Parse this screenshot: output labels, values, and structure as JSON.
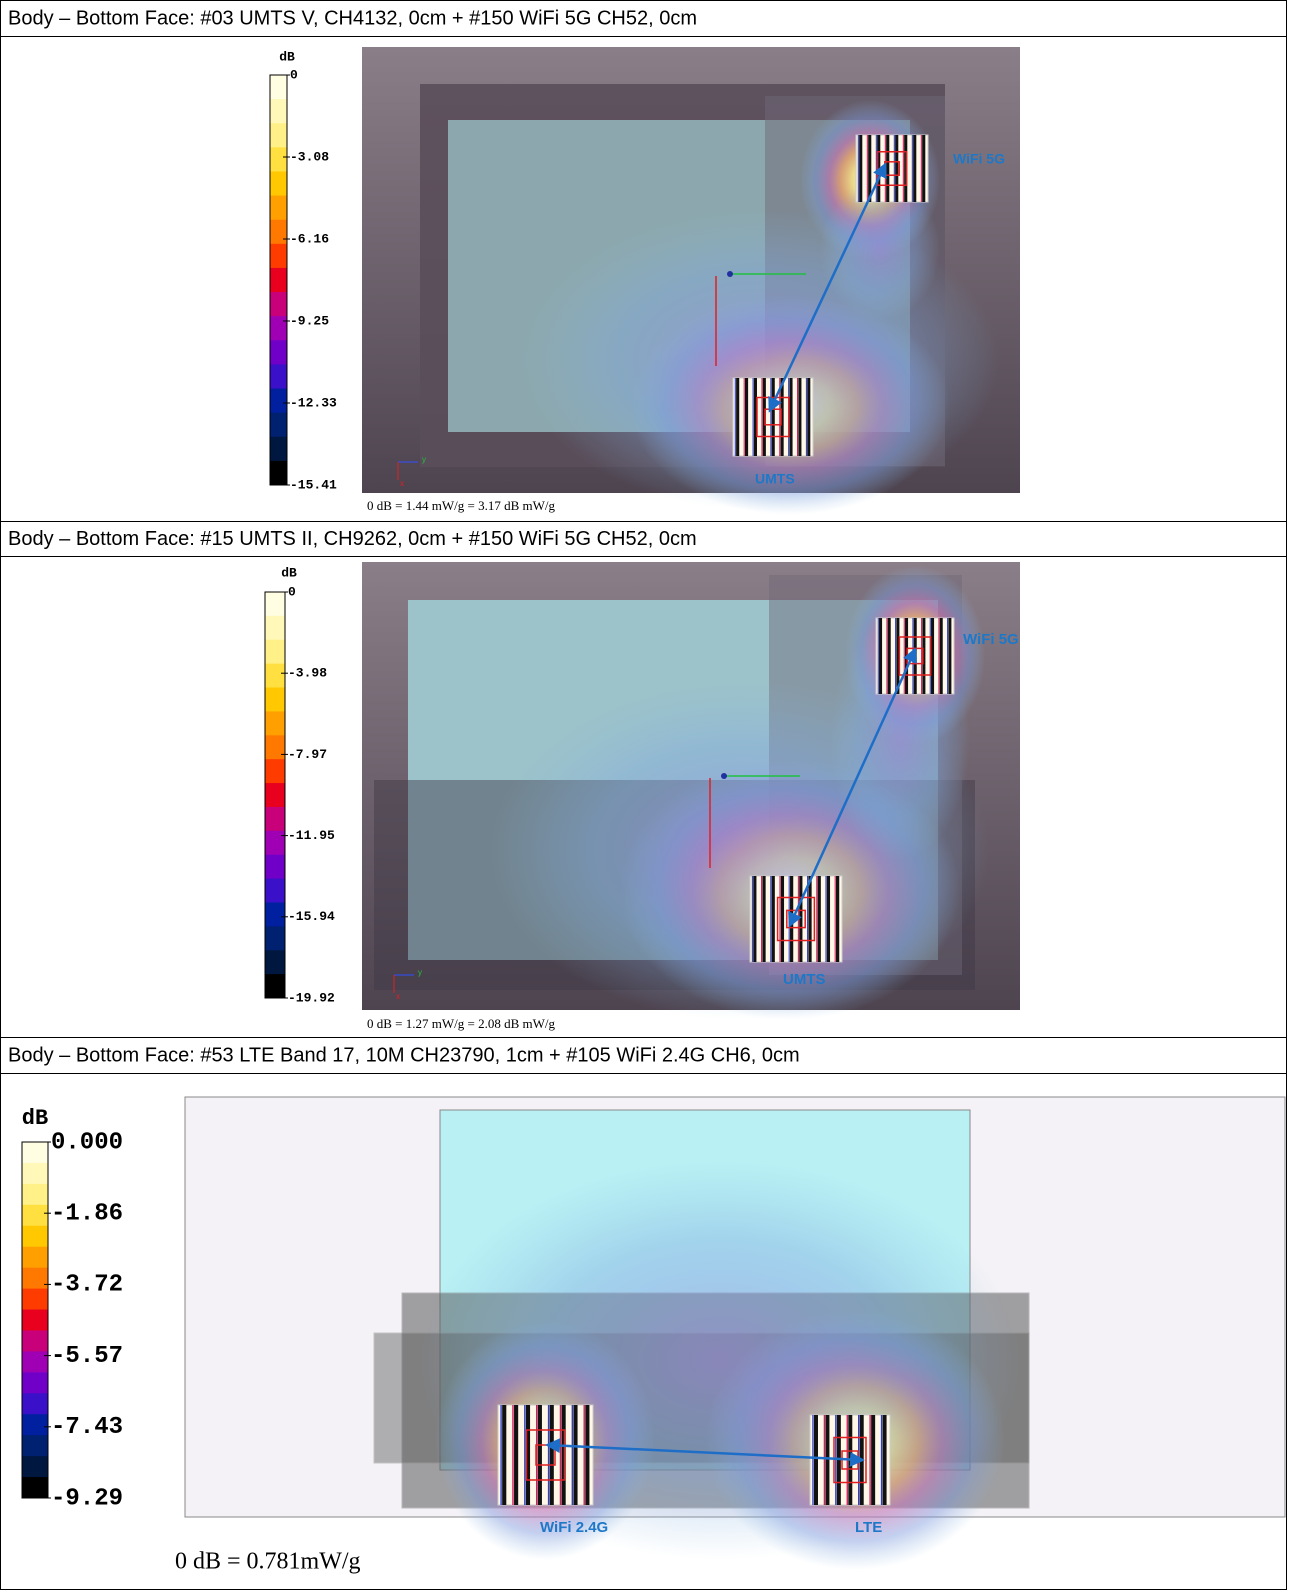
{
  "sections": [
    {
      "title": "Body – Bottom Face: #03 UMTS V, CH4132, 0cm + #150 WiFi 5G CH52, 0cm",
      "colorbar": {
        "unit": "dB",
        "ticks": [
          "0",
          "-3.08",
          "-6.16",
          "-9.25",
          "-12.33",
          "-15.41"
        ]
      },
      "labels": [
        "WiFi 5G",
        "UMTS"
      ],
      "axes": [
        "y",
        "x"
      ],
      "footnote": "0 dB = 1.44 mW/g = 3.17 dB mW/g"
    },
    {
      "title": "Body – Bottom Face: #15 UMTS II, CH9262, 0cm + #150 WiFi 5G CH52, 0cm",
      "colorbar": {
        "unit": "dB",
        "ticks": [
          "0",
          "-3.98",
          "-7.97",
          "-11.95",
          "-15.94",
          "-19.92"
        ]
      },
      "labels": [
        "WiFi 5G",
        "UMTS"
      ],
      "axes": [
        "y",
        "x"
      ],
      "footnote": "0 dB = 1.27 mW/g = 2.08 dB mW/g"
    },
    {
      "title": "Body – Bottom Face: #53 LTE Band 17, 10M CH23790, 1cm + #105 WiFi 2.4G CH6, 0cm",
      "colorbar": {
        "unit": "dB",
        "ticks": [
          "0.000",
          "-1.86",
          "-3.72",
          "-5.57",
          "-7.43",
          "-9.29"
        ]
      },
      "labels": [
        "WiFi 2.4G",
        "LTE"
      ],
      "footnote": "0 dB = 0.781mW/g"
    }
  ]
}
